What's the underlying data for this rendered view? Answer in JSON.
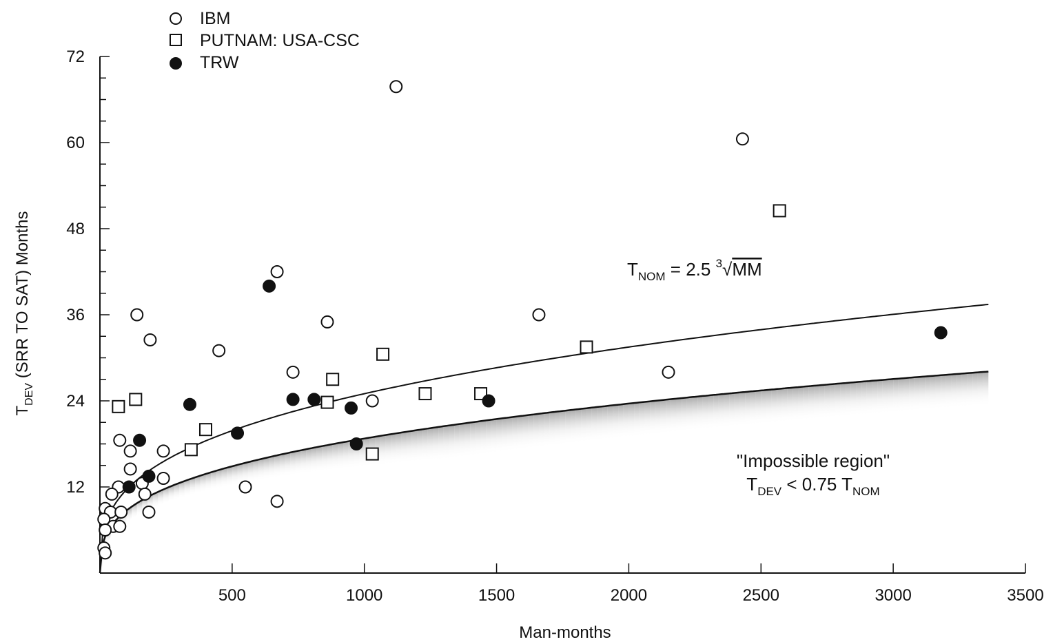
{
  "chart_data": {
    "type": "scatter",
    "xlabel": "Man-months",
    "ylabel": {
      "main": "T",
      "sub": "DEV",
      "rest": " (SRR TO SAT) Months"
    },
    "xlim": [
      0,
      3500
    ],
    "ylim": [
      0,
      72
    ],
    "x_ticks": [
      500,
      1000,
      1500,
      2000,
      2500,
      3000,
      3500
    ],
    "y_ticks": [
      12,
      24,
      36,
      48,
      60,
      72
    ],
    "grid": false,
    "legend_position": "top-left",
    "series": [
      {
        "name": "IBM",
        "marker": "open-circle",
        "points": [
          [
            1120,
            67.8
          ],
          [
            2430,
            60.5
          ],
          [
            670,
            42
          ],
          [
            140,
            36
          ],
          [
            860,
            35
          ],
          [
            1660,
            36
          ],
          [
            190,
            32.5
          ],
          [
            450,
            31
          ],
          [
            730,
            28
          ],
          [
            2150,
            28
          ],
          [
            1030,
            24
          ],
          [
            75,
            18.5
          ],
          [
            115,
            17
          ],
          [
            240,
            17
          ],
          [
            115,
            14.5
          ],
          [
            240,
            13.2
          ],
          [
            70,
            12
          ],
          [
            160,
            12.5
          ],
          [
            550,
            12
          ],
          [
            45,
            11
          ],
          [
            170,
            11
          ],
          [
            670,
            10
          ],
          [
            20,
            9
          ],
          [
            40,
            8.5
          ],
          [
            80,
            8.5
          ],
          [
            185,
            8.5
          ],
          [
            15,
            7.5
          ],
          [
            50,
            6.5
          ],
          [
            75,
            6.5
          ],
          [
            20,
            6
          ],
          [
            15,
            3.5
          ],
          [
            20,
            2.8
          ]
        ]
      },
      {
        "name": "PUTNAM: USA-CSC",
        "marker": "open-square",
        "points": [
          [
            2570,
            50.5
          ],
          [
            1840,
            31.5
          ],
          [
            1070,
            30.5
          ],
          [
            880,
            27
          ],
          [
            1230,
            25
          ],
          [
            1440,
            25
          ],
          [
            860,
            23.8
          ],
          [
            135,
            24.2
          ],
          [
            70,
            23.2
          ],
          [
            400,
            20
          ],
          [
            345,
            17.2
          ],
          [
            1030,
            16.6
          ]
        ]
      },
      {
        "name": "TRW",
        "marker": "filled-circle",
        "points": [
          [
            640,
            40
          ],
          [
            3180,
            33.5
          ],
          [
            340,
            23.5
          ],
          [
            730,
            24.2
          ],
          [
            810,
            24.2
          ],
          [
            950,
            23
          ],
          [
            1470,
            24
          ],
          [
            520,
            19.5
          ],
          [
            150,
            18.5
          ],
          [
            970,
            18
          ],
          [
            185,
            13.5
          ],
          [
            110,
            12
          ]
        ]
      }
    ],
    "curves": [
      {
        "label": "T_NOM = 2.5 ∛MM",
        "formula": "y = 2.5 * x^(1/3)",
        "x_range": [
          0,
          3360
        ]
      },
      {
        "label": "T_DEV = 0.75 T_NOM",
        "formula": "y = 1.875 * x^(1/3)",
        "x_range": [
          0,
          3360
        ],
        "shaded_below": true
      }
    ],
    "annotations": {
      "t_nom_formula": {
        "t": "T",
        "sub": "NOM",
        "eq": " = 2.5 ",
        "root_index": "3",
        "radical": "√",
        "radicand": "MM"
      },
      "impossible_region_title": "\"Impossible region\"",
      "impossible_region_condition": {
        "t1": "T",
        "sub1": "DEV",
        "mid": " < 0.75 T",
        "sub2": "NOM"
      }
    }
  }
}
